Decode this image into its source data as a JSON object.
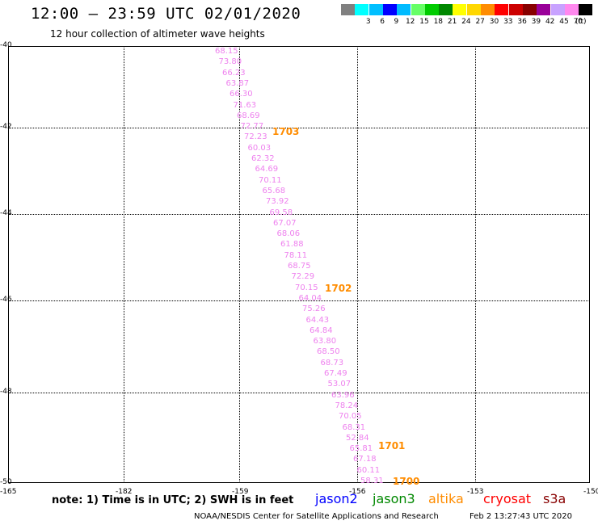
{
  "header": {
    "title": "12:00 – 23:59 UTC 02/01/2020",
    "subtitle": "12 hour collection of altimeter wave heights"
  },
  "legend": {
    "unit": "(ft)",
    "swatches": [
      {
        "color": "#808080",
        "label": ""
      },
      {
        "color": "#00ffff",
        "label": "3"
      },
      {
        "color": "#00bfff",
        "label": "6"
      },
      {
        "color": "#0000ff",
        "label": "9"
      },
      {
        "color": "#00bbff",
        "label": "12"
      },
      {
        "color": "#66ff66",
        "label": "15"
      },
      {
        "color": "#00cc00",
        "label": "18"
      },
      {
        "color": "#008800",
        "label": "21"
      },
      {
        "color": "#ffff00",
        "label": "24"
      },
      {
        "color": "#ffd700",
        "label": "27"
      },
      {
        "color": "#ff8c00",
        "label": "30"
      },
      {
        "color": "#ff0000",
        "label": "33"
      },
      {
        "color": "#cc0000",
        "label": "36"
      },
      {
        "color": "#880000",
        "label": "39"
      },
      {
        "color": "#990099",
        "label": "42"
      },
      {
        "color": "#c8a2ff",
        "label": "45"
      },
      {
        "color": "#ff88ee",
        "label": "70"
      },
      {
        "color": "#000000",
        "label": ""
      }
    ]
  },
  "axes": {
    "lat_labels": [
      "-40",
      "-42",
      "-44",
      "-46",
      "-48",
      "-50"
    ],
    "lon_labels": [
      "-165",
      "-182",
      "-159",
      "-156",
      "-153",
      "-150"
    ]
  },
  "observations": {
    "swh_color": "#ee82ee",
    "time_color": "#ff8c00",
    "values": [
      "68.15",
      "73.80",
      "66.23",
      "63.87",
      "66.30",
      "71.63",
      "68.69",
      "72.77",
      "72.23",
      "60.03",
      "62.32",
      "64.69",
      "70.11",
      "65.68",
      "73.92",
      "69.58",
      "67.07",
      "68.06",
      "61.88",
      "78.11",
      "68.75",
      "72.29",
      "70.15",
      "64.04",
      "75.26",
      "64.43",
      "64.84",
      "63.80",
      "68.50",
      "68.73",
      "67.49",
      "53.07",
      "63.96",
      "78.24",
      "70.05",
      "68.31",
      "52.84",
      "65.81",
      "67.18",
      "60.11",
      "58.31"
    ],
    "times": [
      "1703",
      "1702",
      "1701",
      "1700"
    ]
  },
  "footer": {
    "note": "note: 1) Time is in UTC; 2) SWH is in feet",
    "satellites": [
      {
        "name": "jason2",
        "color": "#0000ff"
      },
      {
        "name": "jason3",
        "color": "#008800"
      },
      {
        "name": "altika",
        "color": "#ff8c00"
      },
      {
        "name": "cryosat",
        "color": "#ff0000"
      },
      {
        "name": "s3a",
        "color": "#880000"
      }
    ],
    "credit": "NOAA/NESDIS Center for Satellite Applications and Research",
    "timestamp": "Feb  2 13:27:43 UTC 2020"
  }
}
